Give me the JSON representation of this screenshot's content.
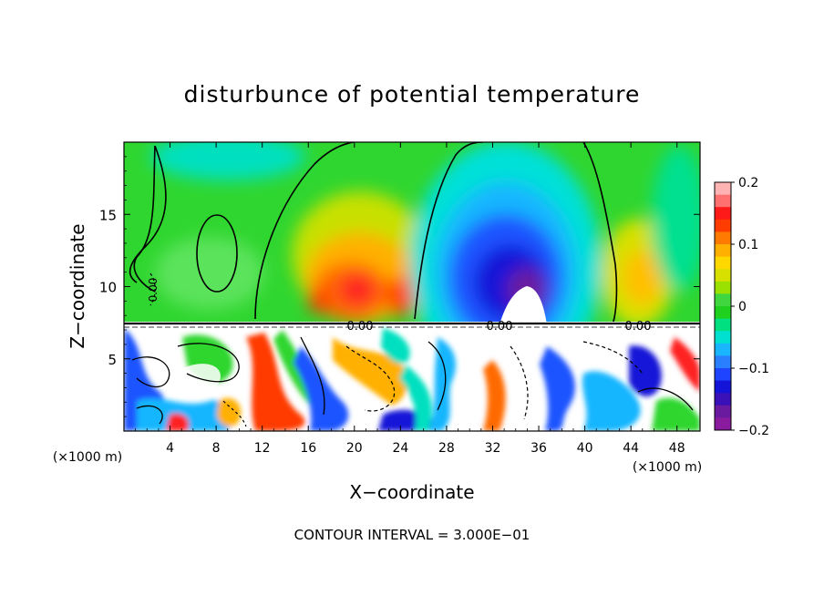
{
  "chart_data": {
    "type": "heatmap",
    "title": "disturbunce of potential temperature",
    "xlabel": "X−coordinate",
    "ylabel": "Z−coordinate",
    "x_unit_left": "(×1000 m)",
    "x_unit_right": "(×1000 m)",
    "x_ticks": [
      4,
      8,
      12,
      16,
      20,
      24,
      28,
      32,
      36,
      40,
      44,
      48
    ],
    "x_range": [
      0,
      50
    ],
    "y_ticks": [
      5,
      10,
      15
    ],
    "y_range": [
      0,
      20
    ],
    "colorbar": {
      "ticks": [
        "0.2",
        "0.1",
        "0",
        "−0.1",
        "−0.2"
      ],
      "range": [
        -0.2,
        0.2
      ]
    },
    "contour_labels": [
      "0.00",
      "0.00",
      "0.00",
      "0.00"
    ],
    "footer": "CONTOUR INTERVAL = 3.000E−01",
    "inversion_height": 7.5
  }
}
